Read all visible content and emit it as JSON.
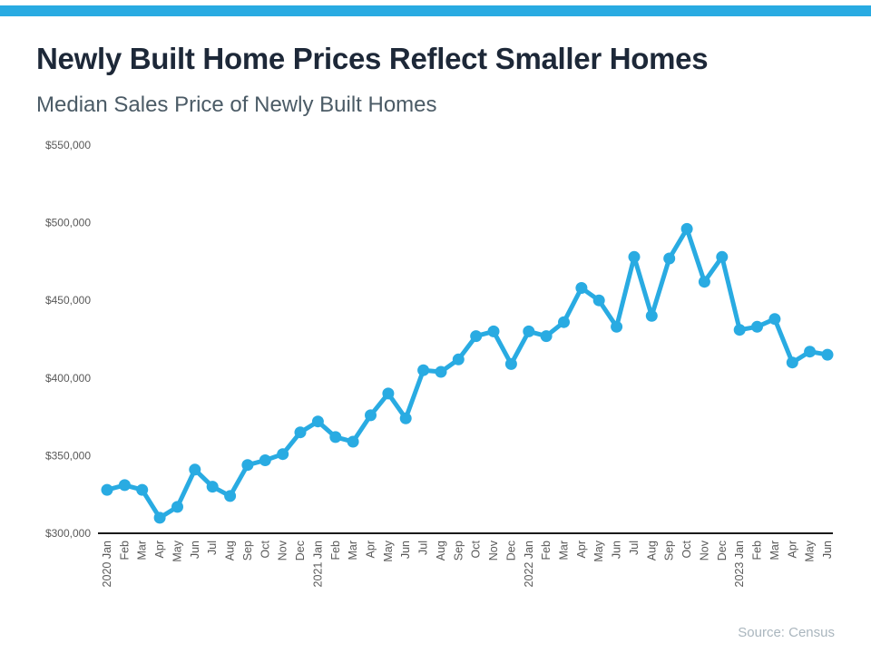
{
  "header": {
    "title": "Newly Built Home Prices Reflect Smaller Homes",
    "subtitle": "Median Sales Price of Newly Built Homes"
  },
  "footer": {
    "source": "Source: Census"
  },
  "accent_color": "#29ABE2",
  "chart_data": {
    "type": "line",
    "title": "Median Sales Price of Newly Built Homes",
    "categories": [
      "2020 Jan",
      "Feb",
      "Mar",
      "Apr",
      "May",
      "Jun",
      "Jul",
      "Aug",
      "Sep",
      "Oct",
      "Nov",
      "Dec",
      "2021 Jan",
      "Feb",
      "Mar",
      "Apr",
      "May",
      "Jun",
      "Jul",
      "Aug",
      "Sep",
      "Oct",
      "Nov",
      "Dec",
      "2022 Jan",
      "Feb",
      "Mar",
      "Apr",
      "May",
      "Jun",
      "Jul",
      "Aug",
      "Sep",
      "Oct",
      "Nov",
      "Dec",
      "2023 Jan",
      "Feb",
      "Mar",
      "Apr",
      "May",
      "Jun"
    ],
    "values": [
      328000,
      331000,
      328000,
      310000,
      317000,
      341000,
      330000,
      324000,
      344000,
      347000,
      351000,
      365000,
      372000,
      362000,
      359000,
      376000,
      390000,
      374000,
      405000,
      404000,
      412000,
      427000,
      430000,
      409000,
      430000,
      427000,
      436000,
      458000,
      450000,
      433000,
      478000,
      440000,
      477000,
      496000,
      462000,
      478000,
      431000,
      433000,
      438000,
      410000,
      417000,
      415000
    ],
    "ylim": [
      300000,
      550000
    ],
    "ytick_interval": 50000,
    "ytick_labels": [
      "$300,000",
      "$350,000",
      "$400,000",
      "$450,000",
      "$500,000",
      "$550,000"
    ],
    "line_color": "#29ABE2",
    "axis_color": "#1a1a1a",
    "tick_label_color": "#595959",
    "marker": "circle",
    "grid": false,
    "legend": "none"
  }
}
